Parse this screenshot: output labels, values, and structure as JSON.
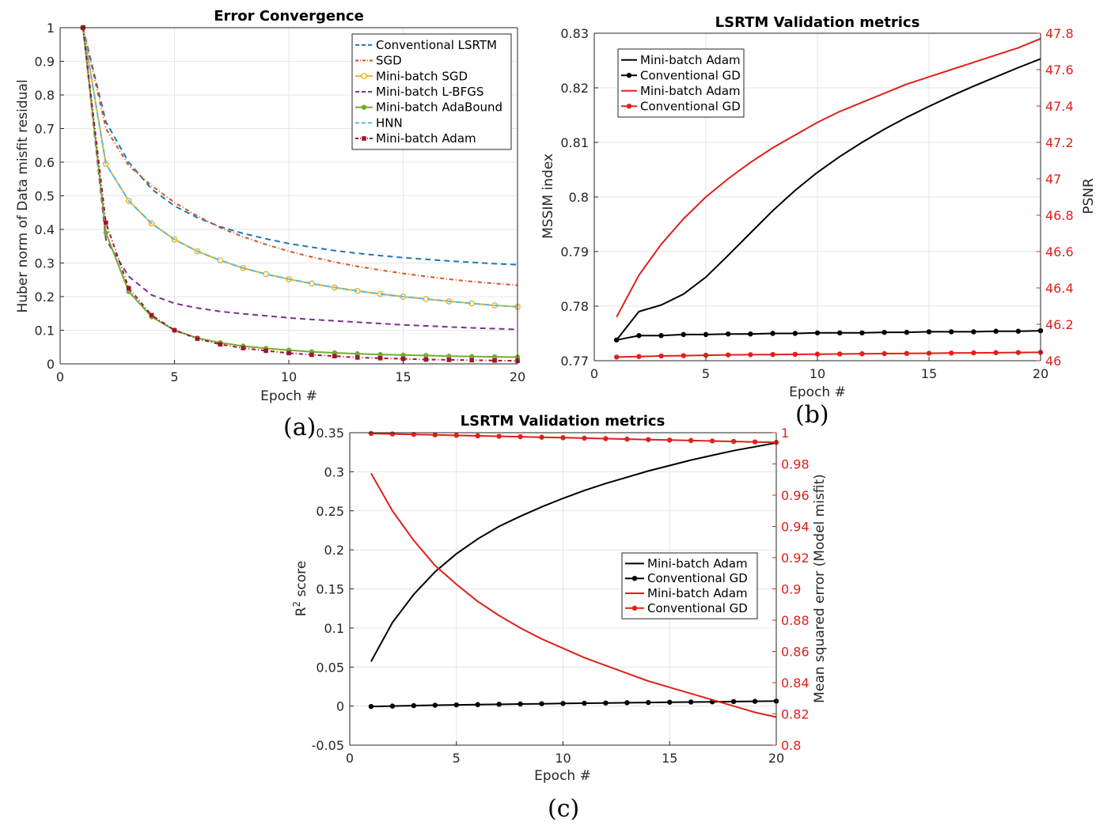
{
  "chart_data": [
    {
      "type": "line",
      "panel_label": "(a)",
      "title": "Error Convergence",
      "xlabel": "Epoch #",
      "ylabel": "Huber norm of Data misfit residual",
      "xlim": [
        0,
        20
      ],
      "ylim": [
        0,
        1
      ],
      "xticks": [
        "0",
        "5",
        "10",
        "15",
        "20"
      ],
      "yticks": [
        "0",
        "0.1",
        "0.2",
        "0.3",
        "0.4",
        "0.5",
        "0.6",
        "0.7",
        "0.8",
        "0.9",
        "1"
      ],
      "grid": true,
      "legend_position": "top-right",
      "x": [
        1,
        2,
        3,
        4,
        5,
        6,
        7,
        8,
        9,
        10,
        11,
        12,
        13,
        14,
        15,
        16,
        17,
        18,
        19,
        20
      ],
      "series": [
        {
          "name": "Conventional LSRTM",
          "color": "#1f77b4",
          "dash": "7,5",
          "marker": "none",
          "values": [
            1.0,
            0.72,
            0.6,
            0.52,
            0.47,
            0.435,
            0.408,
            0.388,
            0.372,
            0.358,
            0.347,
            0.337,
            0.329,
            0.322,
            0.316,
            0.311,
            0.306,
            0.302,
            0.298,
            0.295
          ]
        },
        {
          "name": "SGD",
          "color": "#d95319",
          "dash": "5,3,1,3",
          "marker": "none",
          "values": [
            1.0,
            0.7,
            0.59,
            0.53,
            0.48,
            0.44,
            0.405,
            0.378,
            0.355,
            0.335,
            0.318,
            0.303,
            0.29,
            0.279,
            0.269,
            0.26,
            0.252,
            0.245,
            0.239,
            0.234
          ]
        },
        {
          "name": "Mini-batch SGD",
          "color": "#edb120",
          "dash": "",
          "marker": "circle-open",
          "values": [
            1.0,
            0.595,
            0.485,
            0.418,
            0.37,
            0.335,
            0.308,
            0.285,
            0.267,
            0.252,
            0.239,
            0.227,
            0.217,
            0.208,
            0.2,
            0.193,
            0.186,
            0.18,
            0.174,
            0.17
          ]
        },
        {
          "name": "Mini-batch L-BFGS",
          "color": "#7e2f8e",
          "dash": "7,5",
          "marker": "none",
          "values": [
            1.0,
            0.37,
            0.26,
            0.205,
            0.18,
            0.166,
            0.156,
            0.149,
            0.143,
            0.137,
            0.132,
            0.128,
            0.124,
            0.12,
            0.116,
            0.113,
            0.11,
            0.107,
            0.105,
            0.102
          ]
        },
        {
          "name": "Mini-batch AdaBound",
          "color": "#77ac30",
          "dash": "",
          "marker": "circle-filled",
          "values": [
            1.0,
            0.39,
            0.215,
            0.14,
            0.1,
            0.077,
            0.063,
            0.053,
            0.046,
            0.041,
            0.036,
            0.033,
            0.03,
            0.028,
            0.026,
            0.025,
            0.023,
            0.022,
            0.021,
            0.02
          ]
        },
        {
          "name": "HNN",
          "color": "#4dbeee",
          "dash": "7,5",
          "marker": "none",
          "values": [
            1.0,
            0.595,
            0.485,
            0.418,
            0.37,
            0.335,
            0.308,
            0.285,
            0.267,
            0.252,
            0.239,
            0.227,
            0.217,
            0.208,
            0.2,
            0.193,
            0.186,
            0.18,
            0.174,
            0.17
          ]
        },
        {
          "name": "Mini-batch Adam",
          "color": "#a2142f",
          "dash": "5,3,1,3",
          "marker": "square-filled",
          "values": [
            1.0,
            0.42,
            0.225,
            0.145,
            0.1,
            0.075,
            0.058,
            0.047,
            0.039,
            0.032,
            0.027,
            0.023,
            0.019,
            0.017,
            0.015,
            0.013,
            0.012,
            0.011,
            0.01,
            0.009
          ]
        }
      ]
    },
    {
      "type": "line",
      "panel_label": "(b)",
      "title": "LSRTM Validation metrics",
      "xlabel": "Epoch #",
      "ylabel": "MSSIM index",
      "ylabel_right": "PSNR",
      "xlim": [
        0,
        20
      ],
      "ylim": [
        0.77,
        0.83
      ],
      "ylim_right": [
        46,
        47.8
      ],
      "xticks": [
        "0",
        "5",
        "10",
        "15",
        "20"
      ],
      "yticks": [
        "0.77",
        "0.78",
        "0.79",
        "0.8",
        "0.81",
        "0.82",
        "0.83"
      ],
      "yticks_right": [
        "46",
        "46.2",
        "46.4",
        "46.6",
        "46.8",
        "47",
        "47.2",
        "47.4",
        "47.6",
        "47.8"
      ],
      "grid": true,
      "legend_position": "top-left",
      "x": [
        1,
        2,
        3,
        4,
        5,
        6,
        7,
        8,
        9,
        10,
        11,
        12,
        13,
        14,
        15,
        16,
        17,
        18,
        19,
        20
      ],
      "series": [
        {
          "name": "Mini-batch Adam",
          "axis": "left",
          "color": "#000000",
          "marker": "none",
          "values": [
            0.7738,
            0.779,
            0.7802,
            0.7822,
            0.7853,
            0.7893,
            0.7934,
            0.7975,
            0.8012,
            0.8045,
            0.8074,
            0.81,
            0.8124,
            0.8146,
            0.8166,
            0.8185,
            0.8203,
            0.822,
            0.8237,
            0.8253
          ]
        },
        {
          "name": "Conventional GD",
          "axis": "left",
          "color": "#000000",
          "marker": "circle-filled",
          "values": [
            0.7738,
            0.7746,
            0.7746,
            0.7748,
            0.7748,
            0.7749,
            0.7749,
            0.775,
            0.775,
            0.7751,
            0.7751,
            0.7751,
            0.7752,
            0.7752,
            0.7753,
            0.7753,
            0.7753,
            0.7754,
            0.7754,
            0.7755
          ]
        },
        {
          "name": "Mini-batch Adam",
          "axis": "right",
          "color": "#e0201b",
          "marker": "none",
          "values": [
            46.24,
            46.47,
            46.64,
            46.78,
            46.9,
            47.0,
            47.09,
            47.17,
            47.24,
            47.31,
            47.37,
            47.42,
            47.47,
            47.52,
            47.56,
            47.6,
            47.64,
            47.68,
            47.72,
            47.77
          ]
        },
        {
          "name": "Conventional GD",
          "axis": "right",
          "color": "#e0201b",
          "marker": "circle-filled",
          "values": [
            46.02,
            46.023,
            46.026,
            46.028,
            46.03,
            46.032,
            46.033,
            46.034,
            46.035,
            46.036,
            46.037,
            46.038,
            46.039,
            46.04,
            46.041,
            46.042,
            46.043,
            46.044,
            46.045,
            46.046
          ]
        }
      ]
    },
    {
      "type": "line",
      "panel_label": "(c)",
      "title": "LSRTM Validation metrics",
      "xlabel": "Epoch #",
      "ylabel": "R",
      "ylabel_sup": "2",
      "ylabel_suffix": " score",
      "ylabel_right": "Mean squared error (Model misfit)",
      "xlim": [
        0,
        20
      ],
      "ylim": [
        -0.05,
        0.35
      ],
      "ylim_right": [
        0.8,
        1.0
      ],
      "xticks": [
        "0",
        "5",
        "10",
        "15",
        "20"
      ],
      "yticks": [
        "-0.05",
        "0",
        "0.05",
        "0.1",
        "0.15",
        "0.2",
        "0.25",
        "0.3",
        "0.35"
      ],
      "yticks_right": [
        "0.8",
        "0.82",
        "0.84",
        "0.86",
        "0.88",
        "0.9",
        "0.92",
        "0.94",
        "0.96",
        "0.98",
        "1"
      ],
      "grid": true,
      "legend_position": "middle-right",
      "x": [
        1,
        2,
        3,
        4,
        5,
        6,
        7,
        8,
        9,
        10,
        11,
        12,
        13,
        14,
        15,
        16,
        17,
        18,
        19,
        20
      ],
      "series": [
        {
          "name": "Mini-batch Adam",
          "axis": "left",
          "color": "#000000",
          "marker": "none",
          "values": [
            0.057,
            0.107,
            0.143,
            0.172,
            0.195,
            0.214,
            0.23,
            0.243,
            0.255,
            0.266,
            0.276,
            0.285,
            0.293,
            0.301,
            0.308,
            0.315,
            0.321,
            0.327,
            0.332,
            0.337
          ]
        },
        {
          "name": "Conventional GD",
          "axis": "left",
          "color": "#000000",
          "marker": "circle-filled",
          "values": [
            -0.0005,
            0.0,
            0.0006,
            0.0011,
            0.0015,
            0.0019,
            0.0023,
            0.0027,
            0.003,
            0.0034,
            0.0037,
            0.004,
            0.0043,
            0.0046,
            0.0049,
            0.0052,
            0.0055,
            0.0058,
            0.0061,
            0.0064
          ]
        },
        {
          "name": "Mini-batch Adam",
          "axis": "right",
          "color": "#e0201b",
          "marker": "none",
          "values": [
            0.974,
            0.95,
            0.931,
            0.915,
            0.903,
            0.892,
            0.883,
            0.875,
            0.868,
            0.862,
            0.856,
            0.851,
            0.846,
            0.841,
            0.837,
            0.833,
            0.829,
            0.825,
            0.821,
            0.818
          ]
        },
        {
          "name": "Conventional GD",
          "axis": "right",
          "color": "#e0201b",
          "marker": "circle-filled",
          "values": [
            0.9995,
            0.9992,
            0.9989,
            0.9986,
            0.9983,
            0.998,
            0.9977,
            0.9974,
            0.9971,
            0.9968,
            0.9965,
            0.9962,
            0.9959,
            0.9956,
            0.9953,
            0.995,
            0.9947,
            0.9944,
            0.9941,
            0.9938
          ]
        }
      ]
    }
  ]
}
